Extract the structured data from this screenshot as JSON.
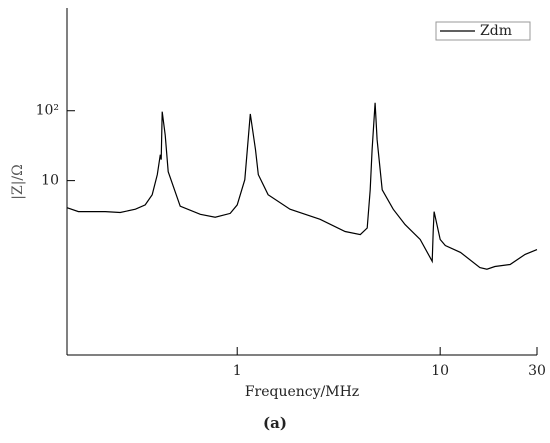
{
  "chart_data": {
    "type": "line",
    "x_label": "Frequency/MHz",
    "y_label": "|Z|/Ω",
    "caption": "(a)",
    "log_x": true,
    "log_y": true,
    "legend": "upper right",
    "x": [
      0.145,
      0.165,
      0.224,
      0.265,
      0.315,
      0.352,
      0.381,
      0.404,
      0.418,
      0.422,
      0.427,
      0.442,
      0.457,
      0.524,
      0.658,
      0.779,
      0.924,
      1,
      1.09,
      1.16,
      1.23,
      1.27,
      1.42,
      1.82,
      2.56,
      3.4,
      4.04,
      4.37,
      4.52,
      4.62,
      4.78,
      4.89,
      5.18,
      5.87,
      6.72,
      7.97,
      9.14,
      9.24,
      9.33,
      10,
      10.6,
      12.6,
      15.7,
      17.0,
      18.6,
      22.1,
      26.2,
      30
    ],
    "series": [
      {
        "name": "Zdm",
        "color": "#000000",
        "values": [
          4.1,
          3.6,
          3.6,
          3.5,
          3.9,
          4.5,
          6.3,
          12.2,
          23.5,
          20,
          97,
          45,
          13.4,
          4.3,
          3.3,
          3.0,
          3.4,
          4.5,
          10.3,
          90,
          27.7,
          12.2,
          6.3,
          3.9,
          2.8,
          1.87,
          1.69,
          2.1,
          7.4,
          27.7,
          130,
          38.5,
          7.4,
          3.9,
          2.35,
          1.44,
          0.7,
          1.87,
          3.6,
          1.44,
          1.18,
          0.94,
          0.57,
          0.54,
          0.59,
          0.63,
          0.88,
          1.03
        ]
      }
    ],
    "xlim": [
      0.145,
      30
    ],
    "xticks": [
      1,
      10,
      30
    ],
    "ylim": [
      0.032,
      2950
    ],
    "yticks": [
      10,
      {
        "value": 100,
        "label": "10²"
      }
    ]
  }
}
